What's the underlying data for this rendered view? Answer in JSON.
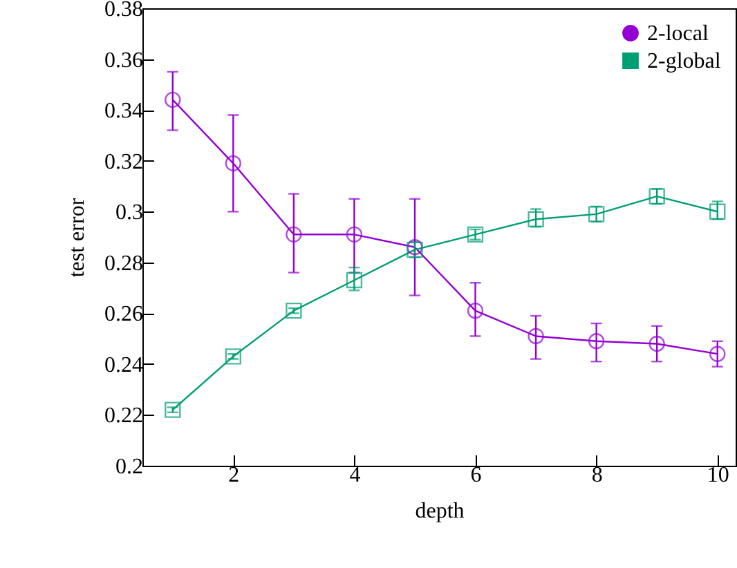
{
  "chart_data": {
    "type": "line",
    "xlabel": "depth",
    "ylabel": "test error",
    "x": [
      1,
      2,
      3,
      4,
      5,
      6,
      7,
      8,
      9,
      10
    ],
    "xlim": [
      0.5,
      10.3
    ],
    "xticks": [
      2,
      4,
      6,
      8,
      10
    ],
    "ylim": [
      0.2,
      0.38
    ],
    "yticks": [
      0.2,
      0.22,
      0.24,
      0.26,
      0.28,
      0.3,
      0.32,
      0.34,
      0.36,
      0.38
    ],
    "grid": false,
    "legend": "top right",
    "series": [
      {
        "name": "2-local",
        "color": "#9400d3",
        "marker": "circle",
        "values": [
          0.344,
          0.319,
          0.291,
          0.291,
          0.286,
          0.261,
          0.251,
          0.249,
          0.248,
          0.244
        ],
        "errors": [
          [
            0.332,
            0.355
          ],
          [
            0.3,
            0.338
          ],
          [
            0.276,
            0.307
          ],
          [
            0.276,
            0.305
          ],
          [
            0.267,
            0.305
          ],
          [
            0.251,
            0.272
          ],
          [
            0.242,
            0.259
          ],
          [
            0.241,
            0.256
          ],
          [
            0.241,
            0.255
          ],
          [
            0.239,
            0.249
          ]
        ]
      },
      {
        "name": "2-global",
        "color": "#009e73",
        "marker": "square",
        "values": [
          0.222,
          0.243,
          0.261,
          0.273,
          0.285,
          0.291,
          0.297,
          0.299,
          0.306,
          0.3
        ],
        "errors": [
          [
            0.221,
            0.223
          ],
          [
            0.242,
            0.244
          ],
          [
            0.26,
            0.262
          ],
          [
            0.269,
            0.278
          ],
          [
            0.282,
            0.288
          ],
          [
            0.289,
            0.293
          ],
          [
            0.294,
            0.301
          ],
          [
            0.296,
            0.302
          ],
          [
            0.303,
            0.309
          ],
          [
            0.297,
            0.304
          ]
        ]
      }
    ]
  }
}
